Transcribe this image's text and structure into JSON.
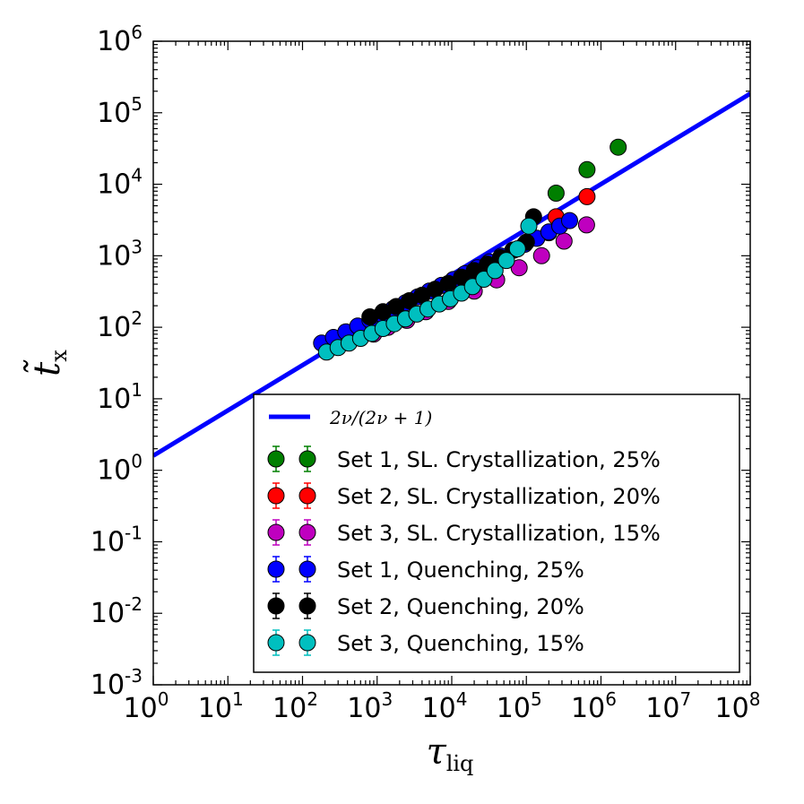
{
  "chart_data": {
    "type": "scatter",
    "title": "",
    "x_scale": "log",
    "y_scale": "log",
    "xlim": [
      1,
      100000000
    ],
    "ylim": [
      0.001,
      1000000
    ],
    "x_ticks": [
      {
        "value": 1,
        "base": "10",
        "exp": "0"
      },
      {
        "value": 10,
        "base": "10",
        "exp": "1"
      },
      {
        "value": 100,
        "base": "10",
        "exp": "2"
      },
      {
        "value": 1000,
        "base": "10",
        "exp": "3"
      },
      {
        "value": 10000,
        "base": "10",
        "exp": "4"
      },
      {
        "value": 100000,
        "base": "10",
        "exp": "5"
      },
      {
        "value": 1000000,
        "base": "10",
        "exp": "6"
      },
      {
        "value": 10000000,
        "base": "10",
        "exp": "7"
      },
      {
        "value": 100000000,
        "base": "10",
        "exp": "8"
      }
    ],
    "y_ticks": [
      {
        "value": 0.001,
        "base": "10",
        "exp": "-3"
      },
      {
        "value": 0.01,
        "base": "10",
        "exp": "-2"
      },
      {
        "value": 0.1,
        "base": "10",
        "exp": "-1"
      },
      {
        "value": 1,
        "base": "10",
        "exp": "0"
      },
      {
        "value": 10,
        "base": "10",
        "exp": "1"
      },
      {
        "value": 100,
        "base": "10",
        "exp": "2"
      },
      {
        "value": 1000,
        "base": "10",
        "exp": "3"
      },
      {
        "value": 10000,
        "base": "10",
        "exp": "4"
      },
      {
        "value": 100000,
        "base": "10",
        "exp": "5"
      },
      {
        "value": 1000000,
        "base": "10",
        "exp": "6"
      }
    ],
    "xlabel": {
      "main": "τ",
      "sub": "liq"
    },
    "ylabel": {
      "main": "t̃",
      "sub": "x"
    },
    "legend_position": "lower-right",
    "fit_line": {
      "name": "2ν/(2ν + 1)",
      "color": "#0000ff",
      "points": [
        [
          1,
          1.6
        ],
        [
          100000000,
          185000
        ]
      ]
    },
    "series": [
      {
        "name": "Set 1, SL. Crystallization, 25%",
        "color": "#007f00",
        "x": [
          250000,
          650000,
          1700000
        ],
        "y": [
          7500,
          16000,
          33000
        ]
      },
      {
        "name": "Set 2, SL. Crystallization, 20%",
        "color": "#ff0000",
        "x": [
          200000,
          250000,
          650000
        ],
        "y": [
          2100,
          3500,
          6700
        ]
      },
      {
        "name": "Set 3, SL. Crystallization, 15%",
        "color": "#bf00bf",
        "x": [
          900,
          1400,
          2500,
          4500,
          9000,
          20000,
          40000,
          80000,
          160000,
          320000,
          640000
        ],
        "y": [
          80,
          100,
          125,
          165,
          230,
          320,
          460,
          680,
          1000,
          1600,
          2700
        ]
      },
      {
        "name": "Set 1, Quenching, 25%",
        "color": "#0000ff",
        "x": [
          180,
          260,
          380,
          550,
          800,
          1150,
          1650,
          2400,
          3500,
          5000,
          7300,
          10500,
          15000,
          22000,
          32000,
          46000,
          66000,
          95000,
          138000,
          200000,
          280000,
          380000
        ],
        "y": [
          60,
          72,
          86,
          104,
          126,
          152,
          183,
          220,
          266,
          320,
          385,
          465,
          560,
          680,
          820,
          990,
          1200,
          1450,
          1750,
          2150,
          2600,
          3100
        ]
      },
      {
        "name": "Set 2, Quenching, 20%",
        "color": "#000000",
        "x": [
          800,
          1200,
          1800,
          2700,
          4000,
          6000,
          9000,
          13500,
          20000,
          30000,
          45000,
          68000,
          100000,
          125000
        ],
        "y": [
          140,
          165,
          195,
          235,
          280,
          340,
          410,
          500,
          620,
          760,
          940,
          1200,
          1550,
          3500
        ]
      },
      {
        "name": "Set 3, Quenching, 15%",
        "color": "#00bfbf",
        "x": [
          210,
          300,
          420,
          600,
          850,
          1200,
          1700,
          2400,
          3400,
          4800,
          6800,
          9600,
          13500,
          19000,
          27000,
          38000,
          54000,
          76000,
          108000
        ],
        "y": [
          45,
          52,
          60,
          70,
          82,
          96,
          112,
          131,
          153,
          180,
          212,
          250,
          300,
          370,
          470,
          620,
          860,
          1250,
          2600
        ]
      }
    ]
  }
}
